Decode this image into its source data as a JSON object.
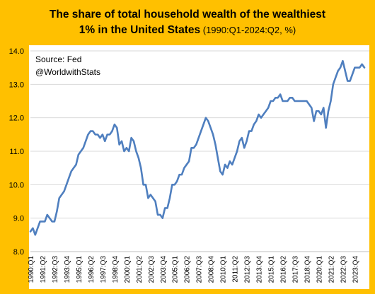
{
  "header": {
    "title_line1": "The share of total household wealth of the wealthiest",
    "title_line2_bold": "1% in the United States",
    "title_line2_note": " (1990:Q1-2024:Q2, %)"
  },
  "annotation": {
    "source": "Source: Fed",
    "handle": "@WorldwithStats"
  },
  "colors": {
    "background": "#FFC000",
    "plot_background": "#FFFFFF",
    "line": "#4F7FBF",
    "grid": "#D9D9D9"
  },
  "chart_data": {
    "type": "line",
    "title": "The share of total household wealth of the wealthiest 1% in the United States (1990:Q1-2024:Q2, %)",
    "xlabel": "",
    "ylabel": "",
    "ylim": [
      8.0,
      14.0
    ],
    "yticks": [
      "8.0",
      "9.0",
      "10.0",
      "11.0",
      "12.0",
      "13.0",
      "14.0"
    ],
    "grid": true,
    "x_tick_labels": [
      "1990:Q1",
      "1991:Q2",
      "1992:Q3",
      "1993:Q4",
      "1995:Q1",
      "1996:Q2",
      "1997:Q3",
      "1998:Q4",
      "2000:Q1",
      "2001:Q2",
      "2002:Q3",
      "2003:Q4",
      "2005:Q1",
      "2006:Q2",
      "2007:Q3",
      "2008:Q4",
      "2010:Q1",
      "2011:Q2",
      "2012:Q3",
      "2013:Q4",
      "2015:Q1",
      "2016:Q2",
      "2017:Q3",
      "2018:Q4",
      "2020:Q1",
      "2021:Q2",
      "2022:Q3",
      "2023:Q4"
    ],
    "x_start": "1990:Q1",
    "x_end": "2024:Q2",
    "values": [
      8.6,
      8.7,
      8.5,
      8.7,
      8.9,
      8.9,
      8.9,
      9.1,
      9.0,
      8.9,
      8.9,
      9.2,
      9.6,
      9.7,
      9.8,
      10.0,
      10.2,
      10.4,
      10.5,
      10.6,
      10.9,
      11.0,
      11.1,
      11.3,
      11.5,
      11.6,
      11.6,
      11.5,
      11.5,
      11.4,
      11.5,
      11.3,
      11.5,
      11.5,
      11.6,
      11.8,
      11.7,
      11.2,
      11.3,
      11.0,
      11.1,
      11.0,
      11.4,
      11.3,
      11.0,
      10.8,
      10.5,
      10.0,
      10.0,
      9.6,
      9.7,
      9.6,
      9.5,
      9.1,
      9.1,
      9.0,
      9.3,
      9.3,
      9.6,
      10.0,
      10.0,
      10.1,
      10.3,
      10.3,
      10.5,
      10.6,
      10.7,
      11.1,
      11.1,
      11.2,
      11.4,
      11.6,
      11.8,
      12.0,
      11.9,
      11.7,
      11.5,
      11.2,
      10.8,
      10.4,
      10.3,
      10.6,
      10.5,
      10.7,
      10.6,
      10.8,
      11.0,
      11.3,
      11.4,
      11.1,
      11.3,
      11.6,
      11.6,
      11.8,
      11.9,
      12.1,
      12.0,
      12.1,
      12.2,
      12.3,
      12.5,
      12.5,
      12.6,
      12.6,
      12.7,
      12.5,
      12.5,
      12.5,
      12.6,
      12.6,
      12.5,
      12.5,
      12.5,
      12.5,
      12.5,
      12.5,
      12.4,
      12.3,
      11.9,
      12.2,
      12.2,
      12.1,
      12.3,
      11.7,
      12.2,
      12.5,
      13.0,
      13.2,
      13.4,
      13.5,
      13.7,
      13.4,
      13.1,
      13.1,
      13.3,
      13.5,
      13.5,
      13.5,
      13.6,
      13.5
    ]
  }
}
